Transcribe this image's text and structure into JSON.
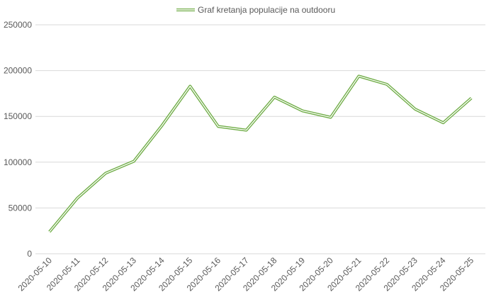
{
  "chart_data": {
    "type": "line",
    "title": "",
    "xlabel": "",
    "ylabel": "",
    "categories": [
      "2020-05-10",
      "2020-05-11",
      "2020-05-12",
      "2020-05-13",
      "2020-05-14",
      "2020-05-15",
      "2020-05-16",
      "2020-05-17",
      "2020-05-18",
      "2020-05-19",
      "2020-05-20",
      "2020-05-21",
      "2020-05-22",
      "2020-05-23",
      "2020-05-24",
      "2020-05-25"
    ],
    "series": [
      {
        "name": "Graf kretanja populacije na outdooru",
        "values": [
          24000,
          61000,
          88000,
          101000,
          140000,
          183000,
          139000,
          135000,
          171000,
          156000,
          149000,
          194000,
          185000,
          158000,
          143000,
          170000
        ],
        "color": "#70ad47"
      }
    ],
    "ylim": [
      0,
      250000
    ],
    "yticks": [
      "0",
      "50000",
      "100000",
      "150000",
      "200000",
      "250000"
    ],
    "grid": true,
    "legend_position": "top-center"
  }
}
